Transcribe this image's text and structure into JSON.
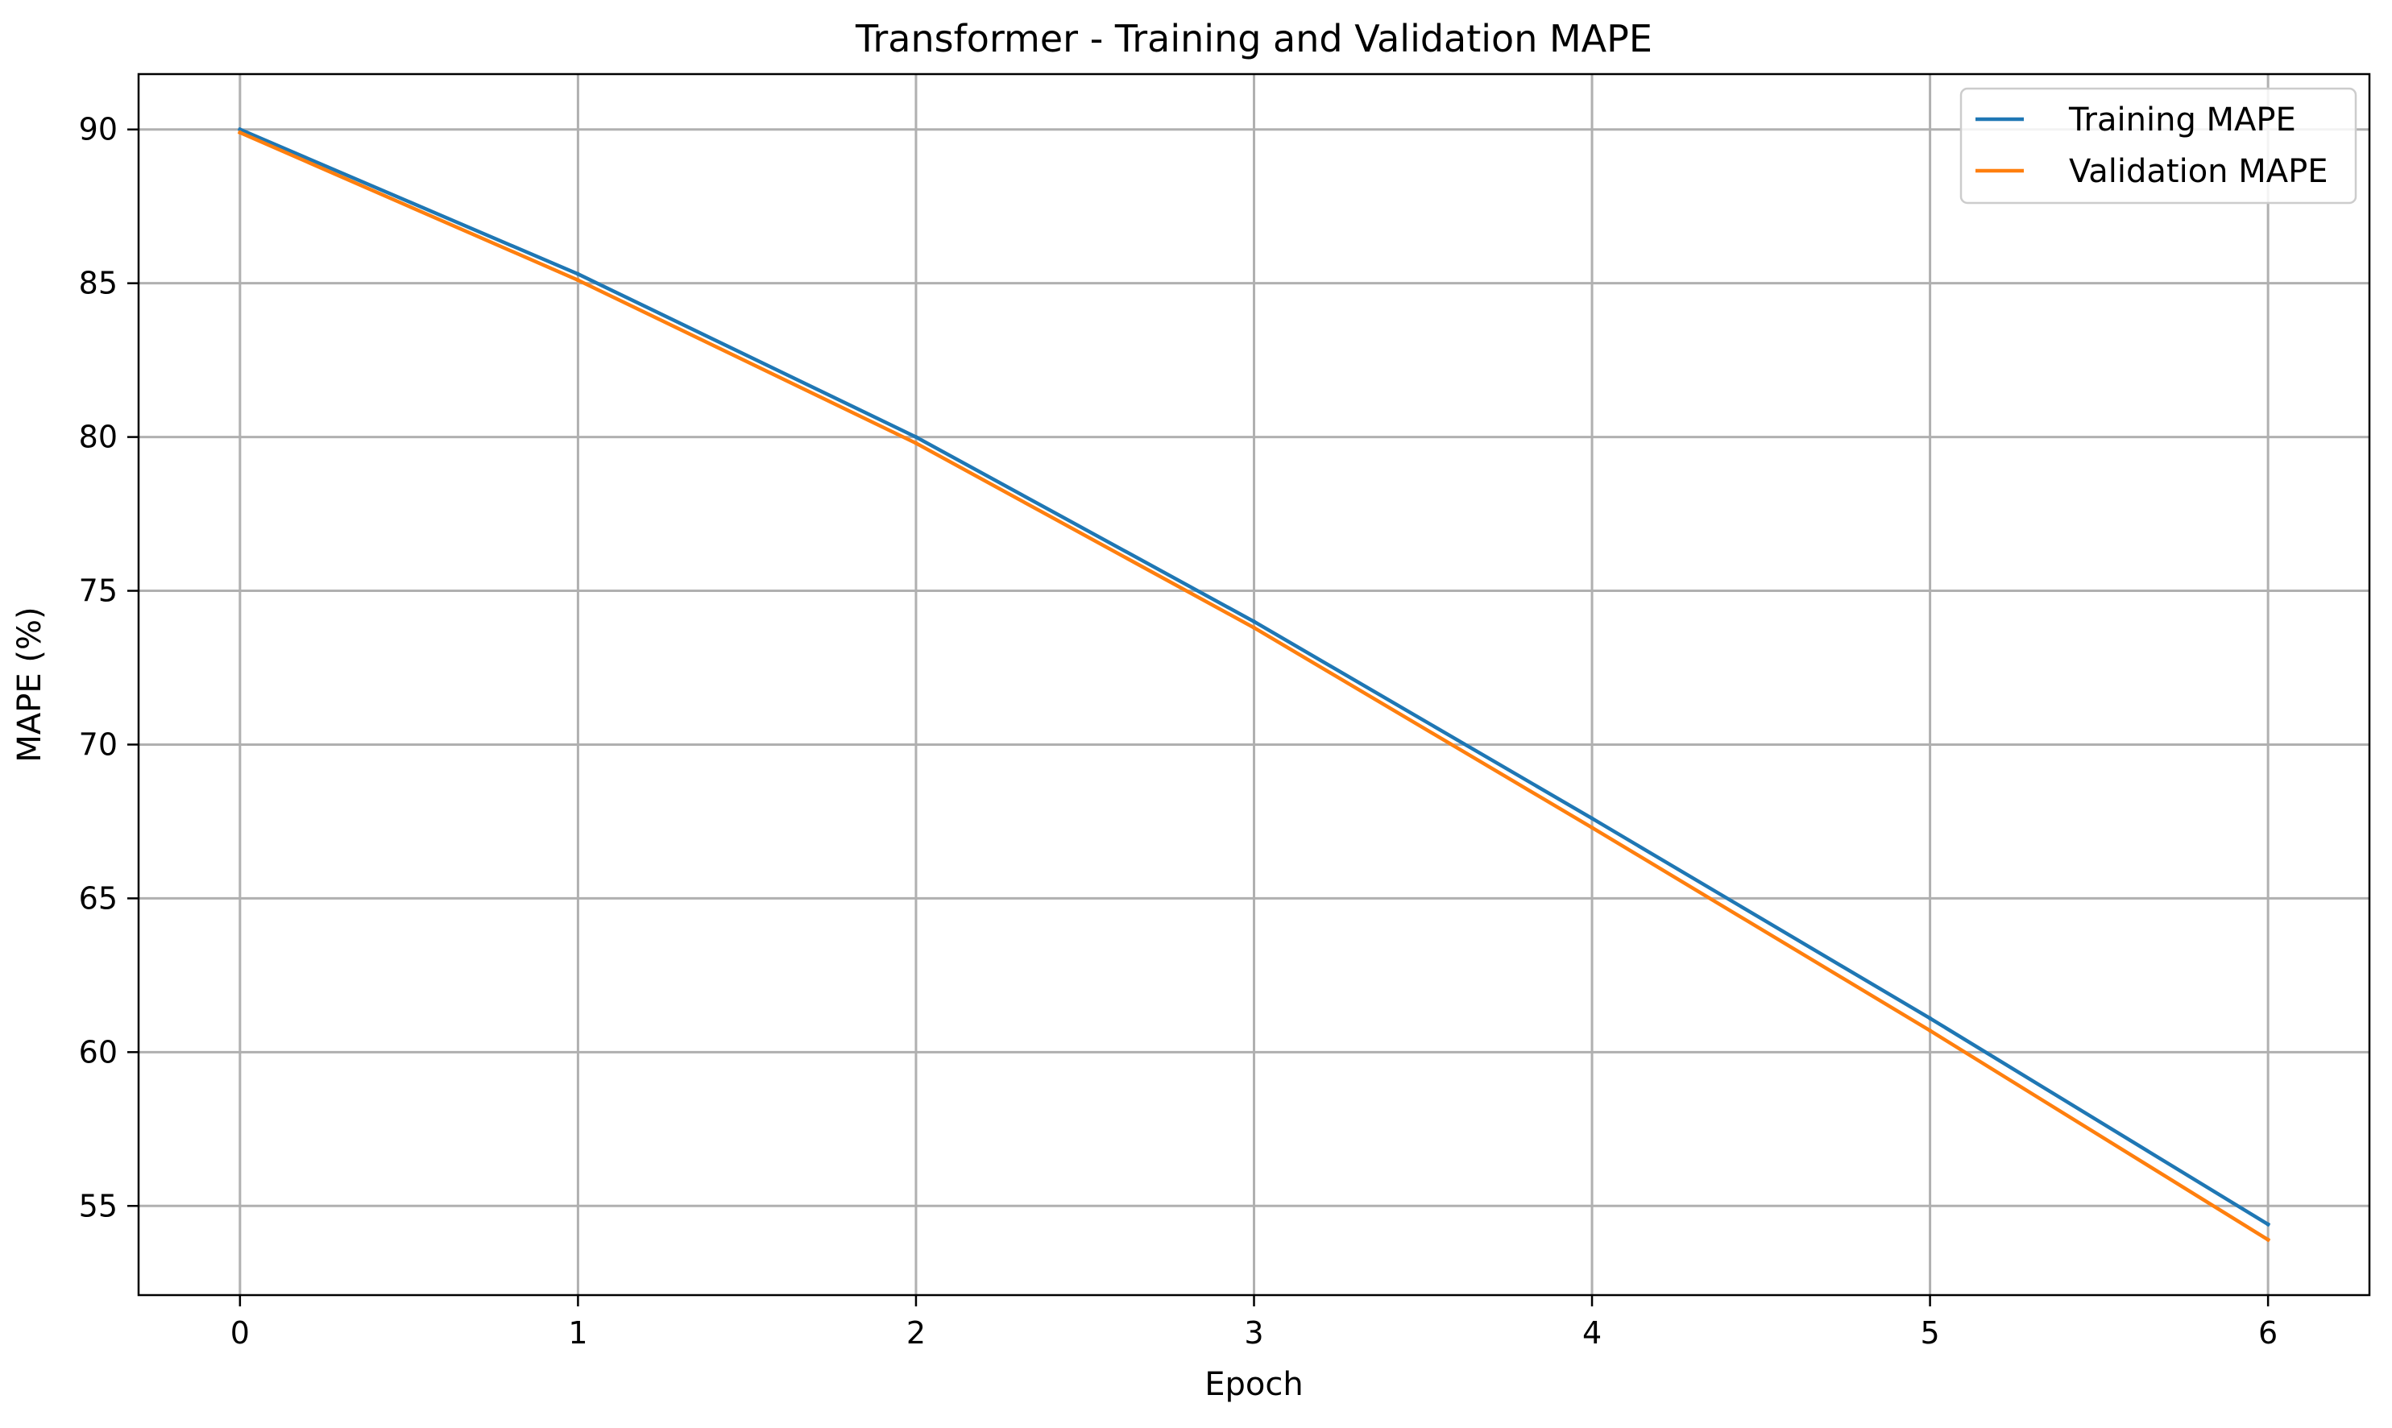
{
  "chart_data": {
    "type": "line",
    "title": "Transformer - Training and Validation MAPE",
    "xlabel": "Epoch",
    "ylabel": "MAPE (%)",
    "x": [
      0,
      1,
      2,
      3,
      4,
      5,
      6
    ],
    "xticks": [
      0,
      1,
      2,
      3,
      4,
      5,
      6
    ],
    "yticks": [
      55,
      60,
      65,
      70,
      75,
      80,
      85,
      90
    ],
    "xlim": [
      -0.3,
      6.3
    ],
    "ylim": [
      52.1,
      91.8
    ],
    "grid": true,
    "legend_position": "top-right",
    "series": [
      {
        "name": "Training MAPE",
        "color": "#1f77b4",
        "values": [
          90.0,
          85.3,
          80.0,
          74.0,
          67.6,
          61.1,
          54.4
        ]
      },
      {
        "name": "Validation MAPE",
        "color": "#ff7f0e",
        "values": [
          89.9,
          85.1,
          79.8,
          73.8,
          67.3,
          60.7,
          53.9
        ]
      }
    ]
  }
}
